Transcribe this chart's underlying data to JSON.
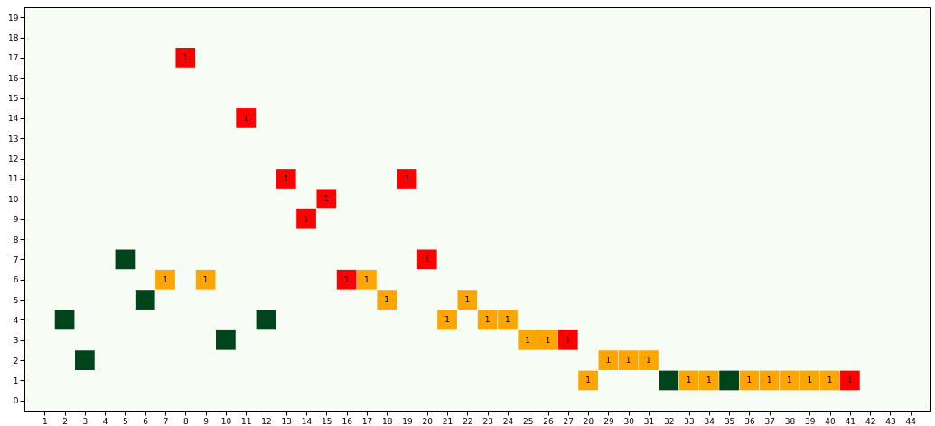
{
  "chart_data": {
    "type": "scatter",
    "marker": "square",
    "grid": false,
    "xlim": [
      0,
      45
    ],
    "ylim": [
      -0.5,
      19.5
    ],
    "xticks": [
      1,
      2,
      3,
      4,
      5,
      6,
      7,
      8,
      9,
      10,
      11,
      12,
      13,
      14,
      15,
      16,
      17,
      18,
      19,
      20,
      21,
      22,
      23,
      24,
      25,
      26,
      27,
      28,
      29,
      30,
      31,
      32,
      33,
      34,
      35,
      36,
      37,
      38,
      39,
      40,
      41,
      42,
      43,
      44
    ],
    "yticks": [
      0,
      1,
      2,
      3,
      4,
      5,
      6,
      7,
      8,
      9,
      10,
      11,
      12,
      13,
      14,
      15,
      16,
      17,
      18,
      19
    ],
    "series": [
      {
        "color": "#00441b",
        "x": [
          2,
          3,
          5,
          6,
          10,
          12,
          32,
          35
        ],
        "values": [
          4,
          2,
          7,
          5,
          3,
          4,
          1,
          1
        ]
      },
      {
        "color": "#ff0000",
        "x": [
          8,
          11,
          13,
          14,
          15,
          16,
          19,
          20,
          27,
          41
        ],
        "values": [
          17,
          14,
          11,
          9,
          10,
          6,
          11,
          7,
          3,
          1
        ]
      },
      {
        "color": "#ffa500",
        "x": [
          7,
          9,
          17,
          18,
          21,
          22,
          23,
          24,
          25,
          26,
          28,
          29,
          30,
          31,
          33,
          34,
          36,
          37,
          38,
          39,
          40
        ],
        "values": [
          6,
          6,
          6,
          5,
          4,
          5,
          4,
          4,
          3,
          3,
          1,
          2,
          2,
          2,
          1,
          1,
          1,
          1,
          1,
          1,
          1
        ]
      }
    ],
    "annotations": [
      {
        "text": "1",
        "x": 8,
        "y": 17
      },
      {
        "text": "1",
        "x": 11,
        "y": 14
      },
      {
        "text": "1",
        "x": 13,
        "y": 11
      },
      {
        "text": "1",
        "x": 14,
        "y": 9
      },
      {
        "text": "1",
        "x": 15,
        "y": 10
      },
      {
        "text": "1",
        "x": 16,
        "y": 6
      },
      {
        "text": "1",
        "x": 19,
        "y": 11
      },
      {
        "text": "1",
        "x": 20,
        "y": 7
      },
      {
        "text": "1",
        "x": 27,
        "y": 3
      },
      {
        "text": "1",
        "x": 41,
        "y": 1
      },
      {
        "text": "1",
        "x": 7,
        "y": 6
      },
      {
        "text": "1",
        "x": 9,
        "y": 6
      },
      {
        "text": "1",
        "x": 17,
        "y": 6
      },
      {
        "text": "1",
        "x": 18,
        "y": 5
      },
      {
        "text": "1",
        "x": 21,
        "y": 4
      },
      {
        "text": "1",
        "x": 22,
        "y": 5
      },
      {
        "text": "1",
        "x": 23,
        "y": 4
      },
      {
        "text": "1",
        "x": 24,
        "y": 4
      },
      {
        "text": "1",
        "x": 25,
        "y": 3
      },
      {
        "text": "1",
        "x": 26,
        "y": 3
      },
      {
        "text": "1",
        "x": 28,
        "y": 1
      },
      {
        "text": "1",
        "x": 29,
        "y": 2
      },
      {
        "text": "1",
        "x": 30,
        "y": 2
      },
      {
        "text": "1",
        "x": 31,
        "y": 2
      },
      {
        "text": "1",
        "x": 33,
        "y": 1
      },
      {
        "text": "1",
        "x": 34,
        "y": 1
      },
      {
        "text": "1",
        "x": 36,
        "y": 1
      },
      {
        "text": "1",
        "x": 37,
        "y": 1
      },
      {
        "text": "1",
        "x": 38,
        "y": 1
      },
      {
        "text": "1",
        "x": 39,
        "y": 1
      },
      {
        "text": "1",
        "x": 40,
        "y": 1
      }
    ]
  }
}
